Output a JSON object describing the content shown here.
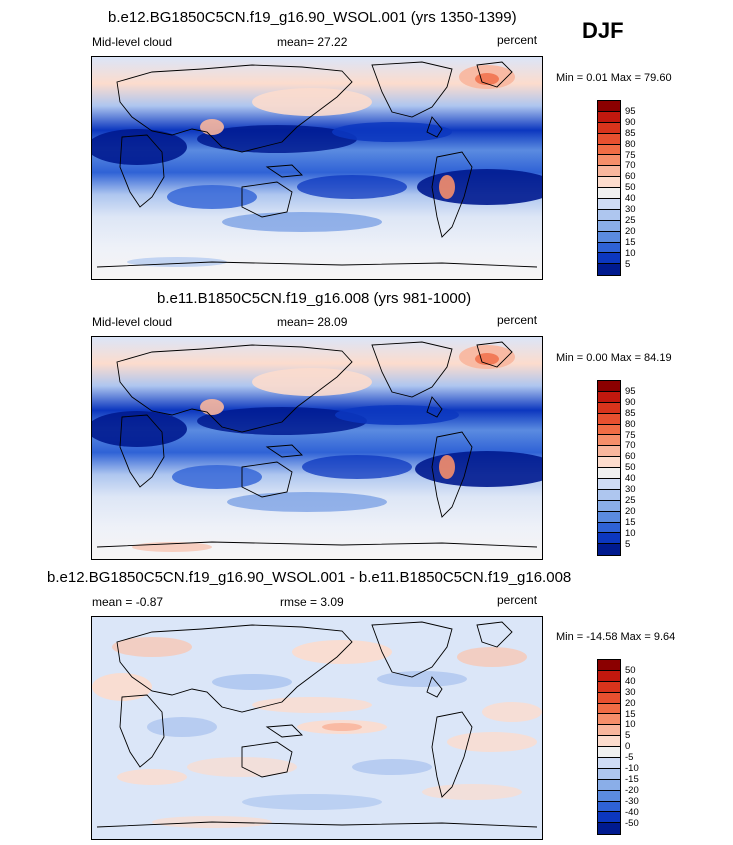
{
  "season": "DJF",
  "panels": [
    {
      "title": "b.e12.BG1850C5CN.f19_g16.90_WSOL.001 (yrs 1350-1399)",
      "left_label": "Mid-level cloud",
      "center_label": "mean=  27.22",
      "units": "percent",
      "minmax": "Min =   0.01 Max =  79.60",
      "colorbar": {
        "levels": [
          "95",
          "90",
          "85",
          "80",
          "75",
          "70",
          "60",
          "50",
          "40",
          "30",
          "25",
          "20",
          "15",
          "10",
          "5"
        ],
        "colors": [
          "#8b0000",
          "#c1180e",
          "#d9341c",
          "#e8502f",
          "#f06c45",
          "#f58e6a",
          "#f8b69d",
          "#fcdccd",
          "#f0f0f0",
          "#cfdcf5",
          "#aec6ef",
          "#8aaee8",
          "#5b8be0",
          "#2f62d6",
          "#0c37bf",
          "#001a8f"
        ]
      }
    },
    {
      "title": "b.e11.B1850C5CN.f19_g16.008 (yrs 981-1000)",
      "left_label": "Mid-level cloud",
      "center_label": "mean=  28.09",
      "units": "percent",
      "minmax": "Min =   0.00 Max =  84.19",
      "colorbar": {
        "levels": [
          "95",
          "90",
          "85",
          "80",
          "75",
          "70",
          "60",
          "50",
          "40",
          "30",
          "25",
          "20",
          "15",
          "10",
          "5"
        ],
        "colors": [
          "#8b0000",
          "#c1180e",
          "#d9341c",
          "#e8502f",
          "#f06c45",
          "#f58e6a",
          "#f8b69d",
          "#fcdccd",
          "#f0f0f0",
          "#cfdcf5",
          "#aec6ef",
          "#8aaee8",
          "#5b8be0",
          "#2f62d6",
          "#0c37bf",
          "#001a8f"
        ]
      }
    },
    {
      "title": "b.e12.BG1850C5CN.f19_g16.90_WSOL.001 - b.e11.B1850C5CN.f19_g16.008",
      "left_label": "mean =  -0.87",
      "center_label": "rmse =   3.09",
      "units": "percent",
      "minmax": "Min = -14.58 Max =   9.64",
      "colorbar": {
        "levels": [
          "50",
          "40",
          "30",
          "20",
          "15",
          "10",
          "5",
          "0",
          "-5",
          "-10",
          "-15",
          "-20",
          "-30",
          "-40",
          "-50"
        ],
        "colors": [
          "#8b0000",
          "#c1180e",
          "#d9341c",
          "#e8502f",
          "#f06c45",
          "#f58e6a",
          "#f8b69d",
          "#fcdccd",
          "#f0f0f0",
          "#cfdcf5",
          "#aec6ef",
          "#8aaee8",
          "#5b8be0",
          "#2f62d6",
          "#0c37bf",
          "#001a8f"
        ]
      }
    }
  ]
}
